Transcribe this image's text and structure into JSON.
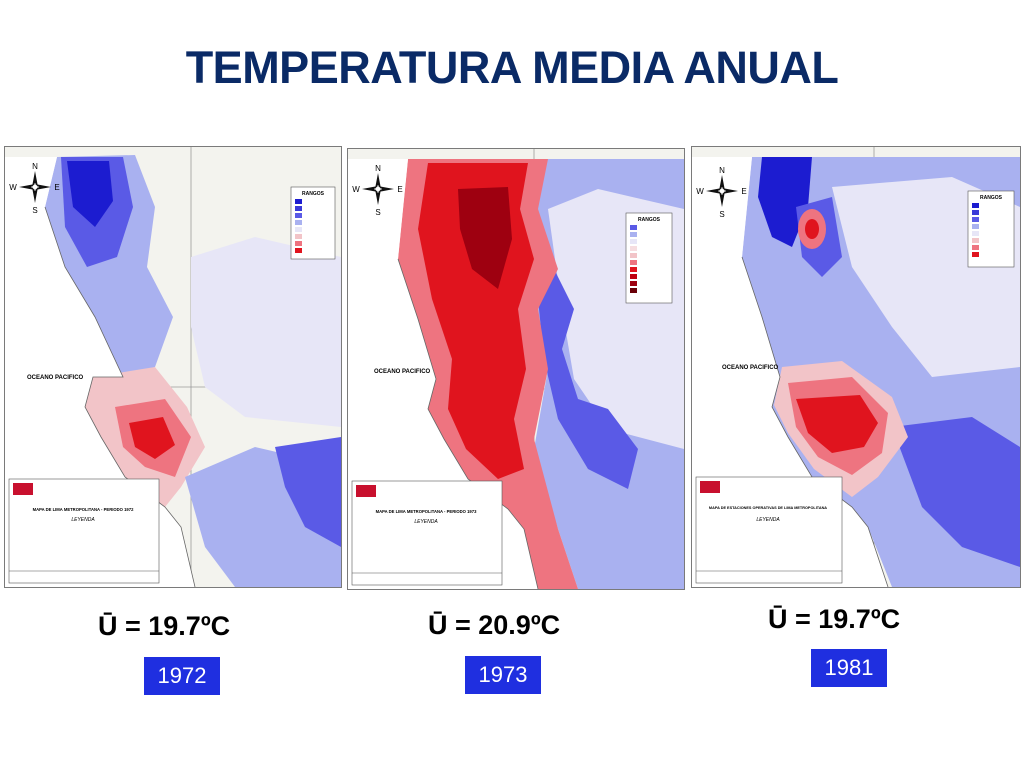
{
  "title": "TEMPERATURA MEDIA ANUAL",
  "map_common": {
    "ocean_label": "OCEANO PACIFICO",
    "legend_title": "RANGOS",
    "leyenda": "LEYENDA",
    "north": "N",
    "south": "S",
    "east": "E",
    "west": "W",
    "colors": {
      "cold_dark": "#1c1cd0",
      "cold": "#5a5ae6",
      "cool": "#a9b1f0",
      "pale": "#e7e6f7",
      "warm_pale": "#f2c4c8",
      "warm": "#ee7480",
      "hot": "#e0141e",
      "hot_dark": "#9e0010",
      "land": "#f3f3ee"
    }
  },
  "panels": [
    {
      "year": "1972",
      "mean_label": "Ū = 19.7ºC",
      "map_title": "MAPA DE LIMA METROPOLITANA - PERIODO 1972"
    },
    {
      "year": "1973",
      "mean_label": "Ū = 20.9ºC",
      "map_title": "MAPA DE LIMA METROPOLITANA - PERIODO 1973"
    },
    {
      "year": "1981",
      "mean_label": "Ū = 19.7ºC",
      "map_title": "MAPA DE ESTACIONES OPERATIVAS DE LIMA METROPOLITANA"
    }
  ]
}
